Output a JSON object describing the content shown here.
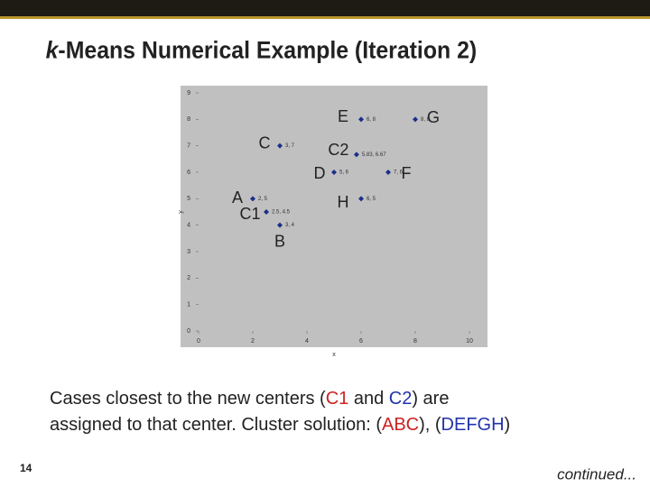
{
  "slide": {
    "title_italic": "k",
    "title_rest": "-Means Numerical Example (Iteration 2)",
    "body": [
      [
        {
          "text": "Cases closest to the new centers (",
          "color": "#222222"
        },
        {
          "text": "C1",
          "color": "#cc2222"
        },
        {
          "text": " and ",
          "color": "#222222"
        },
        {
          "text": "C2",
          "color": "#2233aa"
        },
        {
          "text": ") are",
          "color": "#222222"
        }
      ],
      [
        {
          "text": "assigned to that center. Cluster solution: (",
          "color": "#222222"
        },
        {
          "text": "ABC",
          "color": "#cc2222"
        },
        {
          "text": "), (",
          "color": "#222222"
        },
        {
          "text": "DEFGH",
          "color": "#2233aa"
        },
        {
          "text": ")",
          "color": "#222222"
        }
      ]
    ],
    "page_number": "14",
    "footer": "continued..."
  },
  "chart_data": {
    "type": "scatter",
    "xlabel": "x",
    "ylabel": "y",
    "names": [
      "E",
      "G",
      "C",
      "C2",
      "D",
      "F",
      "A",
      "H",
      "C1",
      "B"
    ],
    "x": [
      6,
      8,
      3,
      5.83,
      5,
      7,
      2,
      6,
      2.5,
      3
    ],
    "y": [
      8,
      8,
      7,
      6.67,
      6,
      6,
      5,
      5,
      4.5,
      4
    ],
    "value_labels": [
      "6, 8",
      "8, 8",
      "3, 7",
      "5.83, 6.67",
      "5, 6",
      "7, 6",
      "2, 5",
      "6, 5",
      "2.5, 4.5",
      "3, 4"
    ],
    "color": "#1a2f8a",
    "background": "#c0c0c0",
    "xlim": [
      0,
      10
    ],
    "ylim": [
      0,
      9
    ],
    "xticks": [
      0,
      2,
      4,
      6,
      8,
      10
    ],
    "yticks": [
      0,
      1,
      2,
      3,
      4,
      5,
      6,
      7,
      8,
      9
    ]
  }
}
